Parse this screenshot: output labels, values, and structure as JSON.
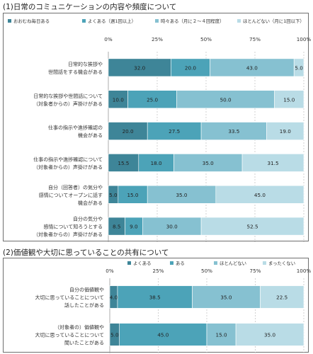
{
  "chart_data": [
    {
      "type": "bar",
      "orientation": "horizontal",
      "stacked": true,
      "title": "(1)日常のコミュニケーションの内容や頻度について",
      "xlim": [
        0,
        100
      ],
      "xticks": [
        "0%",
        "25%",
        "50%",
        "75%",
        "100%"
      ],
      "legend_position": "top",
      "categories": [
        [
          "日常的な挨拶や",
          "世間話をする機会がある"
        ],
        [
          "日常的な挨拶や世間話について",
          "（対象者からの）声掛けがある"
        ],
        [
          "仕事の指示や進捗確認の",
          "機会がある"
        ],
        [
          "仕事の指示や進捗確認について",
          "（対象者からの）声掛けがある"
        ],
        [
          "自分（回答者）の気分や",
          "感情についてオープンに話す",
          "機会がある"
        ],
        [
          "自分の気分や",
          "感情について知ろうとする",
          "（対象者からの）声掛けがある"
        ]
      ],
      "series": [
        {
          "name": "おおむね毎日ある",
          "color": "#3e8598",
          "values": [
            32.0,
            10.0,
            20.0,
            15.5,
            5.0,
            8.5
          ]
        },
        {
          "name": "よくある（週1回以上）",
          "color": "#4ca3b8",
          "values": [
            20.0,
            25.0,
            27.5,
            18.0,
            15.0,
            9.0
          ]
        },
        {
          "name": "時々ある（月に２～４回程度）",
          "color": "#86c1d1",
          "values": [
            43.0,
            50.0,
            33.5,
            35.0,
            35.0,
            30.0
          ]
        },
        {
          "name": "ほとんどない（月に1回以下）",
          "color": "#b9dce6",
          "values": [
            5.0,
            15.0,
            19.0,
            31.5,
            45.0,
            52.5
          ]
        }
      ]
    },
    {
      "type": "bar",
      "orientation": "horizontal",
      "stacked": true,
      "title": "(2)価値観や大切に思っていることの共有について",
      "xlim": [
        0,
        100
      ],
      "xticks": [
        "0%",
        "25%",
        "50%",
        "75%",
        "100%"
      ],
      "legend_position": "top",
      "categories": [
        [
          "自分の価値観や",
          "大切に思っていることについて",
          "話したことがある"
        ],
        [
          "（対象者の）価値観や",
          "大切に思っていることについて",
          "聞いたことがある"
        ]
      ],
      "series": [
        {
          "name": "よくある",
          "color": "#3e8598",
          "values": [
            4.0,
            5.0
          ]
        },
        {
          "name": "ある",
          "color": "#4ca3b8",
          "values": [
            38.5,
            45.0
          ]
        },
        {
          "name": "ほとんどない",
          "color": "#86c1d1",
          "values": [
            35.0,
            15.0
          ]
        },
        {
          "name": "まったくない",
          "color": "#b9dce6",
          "values": [
            22.5,
            35.0
          ]
        }
      ]
    }
  ]
}
